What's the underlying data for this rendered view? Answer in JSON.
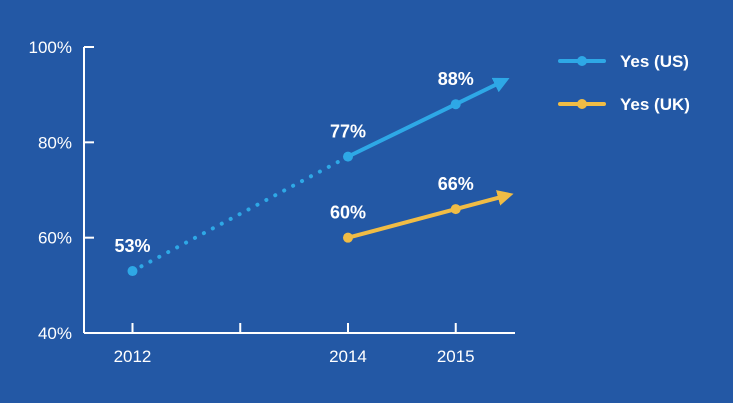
{
  "chart_data": {
    "type": "line",
    "title": "",
    "xlabel": "",
    "ylabel": "",
    "x_ticks": [
      "2012",
      "",
      "2014",
      "2015"
    ],
    "x_tick_values": [
      2012,
      2013,
      2014,
      2015
    ],
    "xlim": [
      2011.55,
      2015.55
    ],
    "y_ticks": [
      "40%",
      "60%",
      "80%",
      "100%"
    ],
    "y_tick_values": [
      40,
      60,
      80,
      100
    ],
    "ylim": [
      40,
      100
    ],
    "grid": false,
    "legend_position": "top-right",
    "series": [
      {
        "name": "Yes (US)",
        "color": "#2ea8e6",
        "points": [
          {
            "x": 2012,
            "y": 53,
            "label": "53%"
          },
          {
            "x": 2014,
            "y": 77,
            "label": "77%"
          },
          {
            "x": 2015,
            "y": 88,
            "label": "88%"
          }
        ],
        "dashed_segments": [
          0
        ],
        "arrow_end": true
      },
      {
        "name": "Yes (UK)",
        "color": "#f0bc45",
        "points": [
          {
            "x": 2014,
            "y": 60,
            "label": "60%"
          },
          {
            "x": 2015,
            "y": 66,
            "label": "66%"
          }
        ],
        "dashed_segments": [],
        "arrow_end": true
      }
    ],
    "axis_color": "#ffffff",
    "background": "#2358a5"
  }
}
